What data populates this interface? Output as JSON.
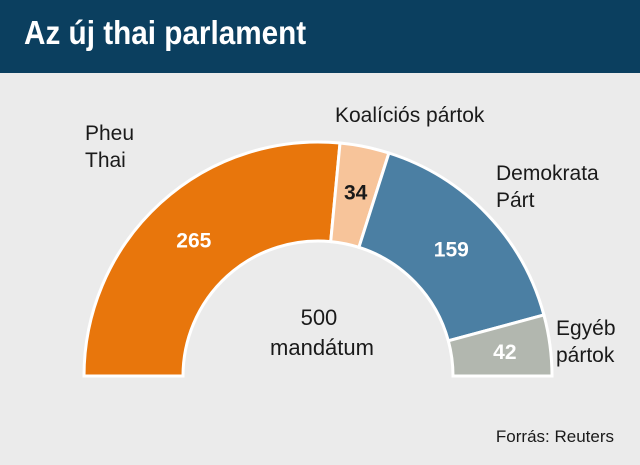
{
  "title": "Az új thai parlament",
  "source": "Forrás: Reuters",
  "center_label": [
    "500",
    "mandátum"
  ],
  "chart_data": {
    "type": "pie",
    "subtype": "half-donut",
    "total": 500,
    "series": [
      {
        "name": "Pheu Thai",
        "label_lines": [
          "Pheu",
          "Thai"
        ],
        "value": 265,
        "color": "#e8760c",
        "value_color": "#ffffff"
      },
      {
        "name": "Koalíciós pártok",
        "label_lines": [
          "Koalíciós pártok"
        ],
        "value": 34,
        "color": "#f7c49a",
        "value_color": "#1a1a1a"
      },
      {
        "name": "Demokrata Párt",
        "label_lines": [
          "Demokrata",
          "Párt"
        ],
        "value": 159,
        "color": "#4b7fa3",
        "value_color": "#ffffff"
      },
      {
        "name": "Egyéb pártok",
        "label_lines": [
          "Egyéb",
          "pártok"
        ],
        "value": 42,
        "color": "#b2b7af",
        "value_color": "#ffffff"
      }
    ]
  }
}
